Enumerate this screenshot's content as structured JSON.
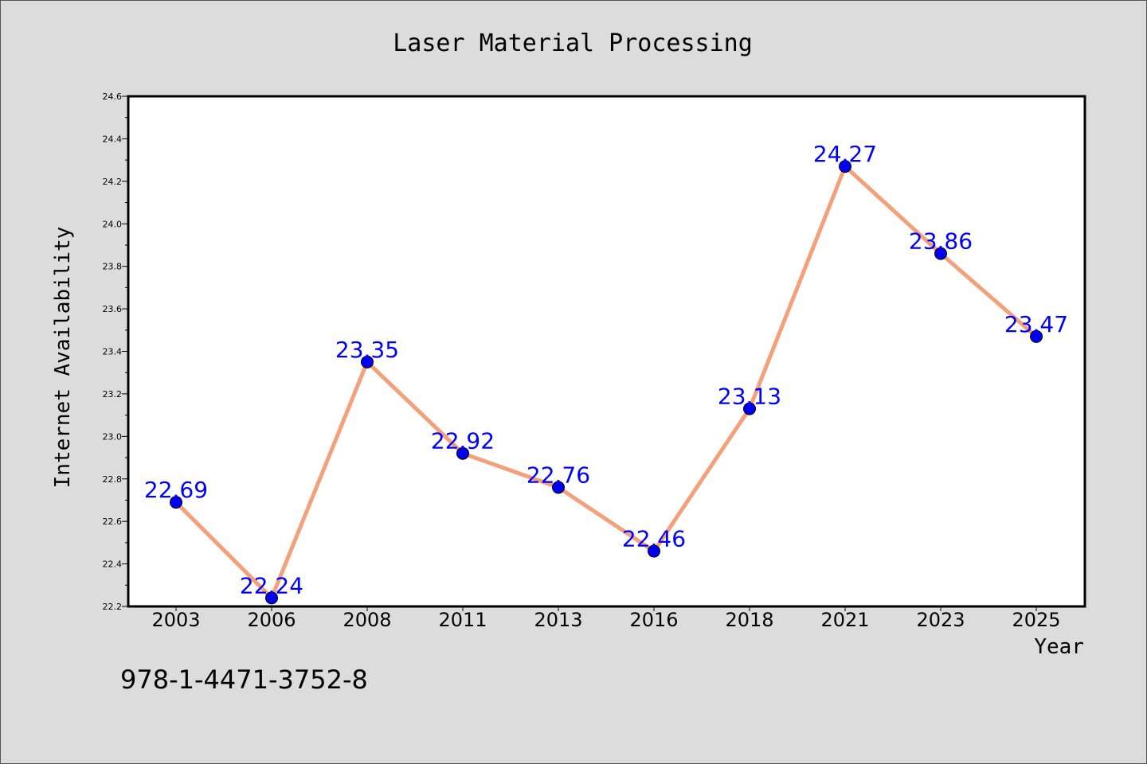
{
  "chart_data": {
    "type": "line",
    "title": "Laser Material Processing",
    "xlabel": "Year",
    "ylabel": "Internet Availability",
    "categories": [
      "2003",
      "2006",
      "2008",
      "2011",
      "2013",
      "2016",
      "2018",
      "2021",
      "2023",
      "2025"
    ],
    "series": [
      {
        "values": [
          22.69,
          22.24,
          23.35,
          22.92,
          22.76,
          22.46,
          23.13,
          24.27,
          23.86,
          23.47
        ],
        "line_color": "#f4a07a",
        "marker_color": "#0000ee",
        "label_color": "#0000ff"
      }
    ],
    "ylim": [
      22.2,
      24.6
    ],
    "yticks": [
      "22.2",
      "22.4",
      "22.6",
      "22.8",
      "23.0",
      "23.2",
      "23.4",
      "23.6",
      "23.8",
      "24.0",
      "24.2",
      "24.4",
      "24.6"
    ],
    "grid": false,
    "data_labels": true
  },
  "footer": {
    "isbn": "978-1-4471-3752-8"
  }
}
